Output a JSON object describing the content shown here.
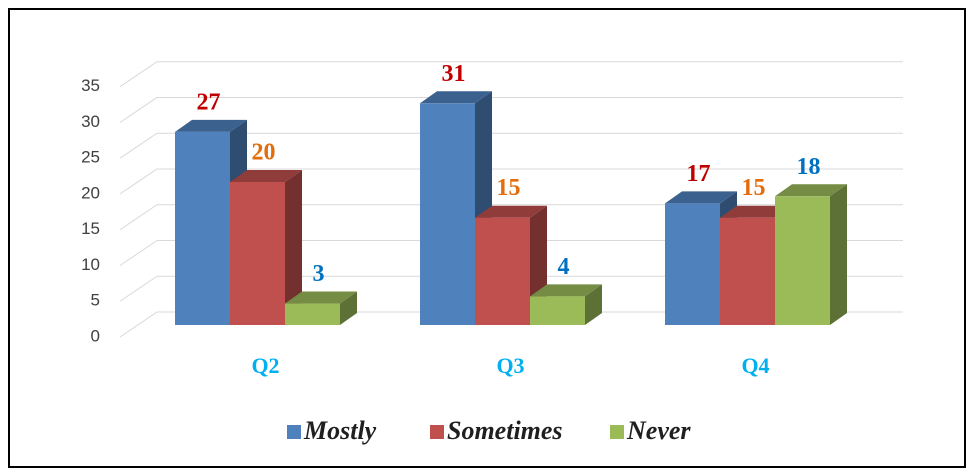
{
  "chart_data": {
    "type": "bar3d",
    "categories": [
      "Q2",
      "Q3",
      "Q4"
    ],
    "series": [
      {
        "name": "Mostly",
        "color": "#4f81bd",
        "label_color": "#c00000",
        "values": [
          27,
          31,
          17
        ]
      },
      {
        "name": "Sometimes",
        "color": "#c0504d",
        "label_color": "#e46c0a",
        "values": [
          20,
          15,
          15
        ]
      },
      {
        "name": "Never",
        "color": "#9bbb59",
        "label_color": "#0070c0",
        "values": [
          3,
          4,
          18
        ]
      }
    ],
    "ylim": [
      0,
      35
    ],
    "yticks": [
      0,
      5,
      10,
      15,
      20,
      25,
      30,
      35
    ],
    "grid": true,
    "legend": "bottom"
  }
}
